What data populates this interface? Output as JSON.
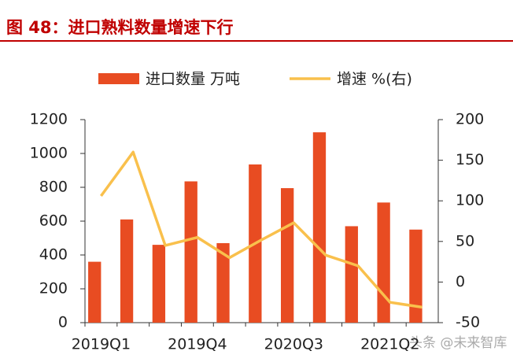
{
  "chart_data": {
    "type": "bar-line",
    "title": "图 48：进口熟料数量增速下行",
    "categories": [
      "2019Q1",
      null,
      null,
      "2019Q4",
      null,
      null,
      "2020Q3",
      null,
      null,
      "2021Q2",
      null
    ],
    "series": [
      {
        "name": "进口数量 万吨",
        "type": "bar",
        "color": "#e84c22",
        "values": [
          360,
          610,
          460,
          835,
          470,
          935,
          795,
          1125,
          570,
          710,
          550
        ]
      },
      {
        "name": "增速 %(右)",
        "type": "line",
        "axis": "y2",
        "color": "#f9c04c",
        "values": [
          106,
          160,
          45,
          55,
          30,
          52,
          73,
          33,
          20,
          -25,
          -31
        ]
      }
    ],
    "ylim": [
      0,
      1200
    ],
    "yticks": [
      0,
      200,
      400,
      600,
      800,
      1000,
      1200
    ],
    "y2lim": [
      -50,
      200
    ],
    "y2ticks": [
      -50,
      0,
      50,
      100,
      150,
      200
    ],
    "watermark": "头条 @未来智库"
  }
}
